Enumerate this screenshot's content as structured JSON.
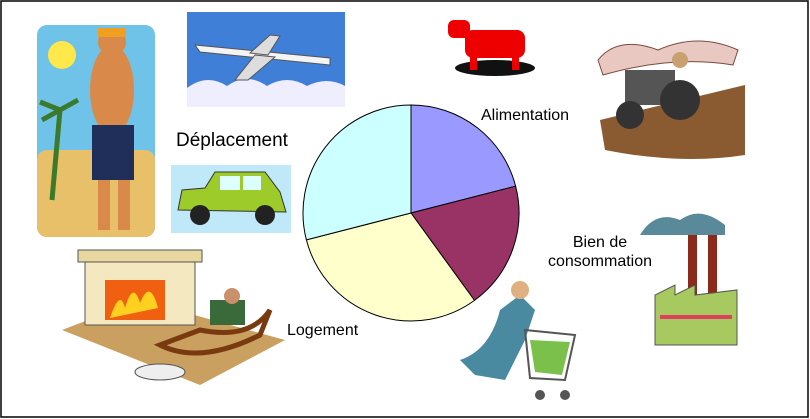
{
  "chart_data": {
    "type": "pie",
    "categories": [
      "Alimentation",
      "Bien de consommation",
      "Logement",
      "Déplacement"
    ],
    "values": [
      21,
      19,
      31,
      29
    ],
    "colors": [
      "#9999ff",
      "#993366",
      "#ffffcc",
      "#ccffff"
    ]
  }
}
